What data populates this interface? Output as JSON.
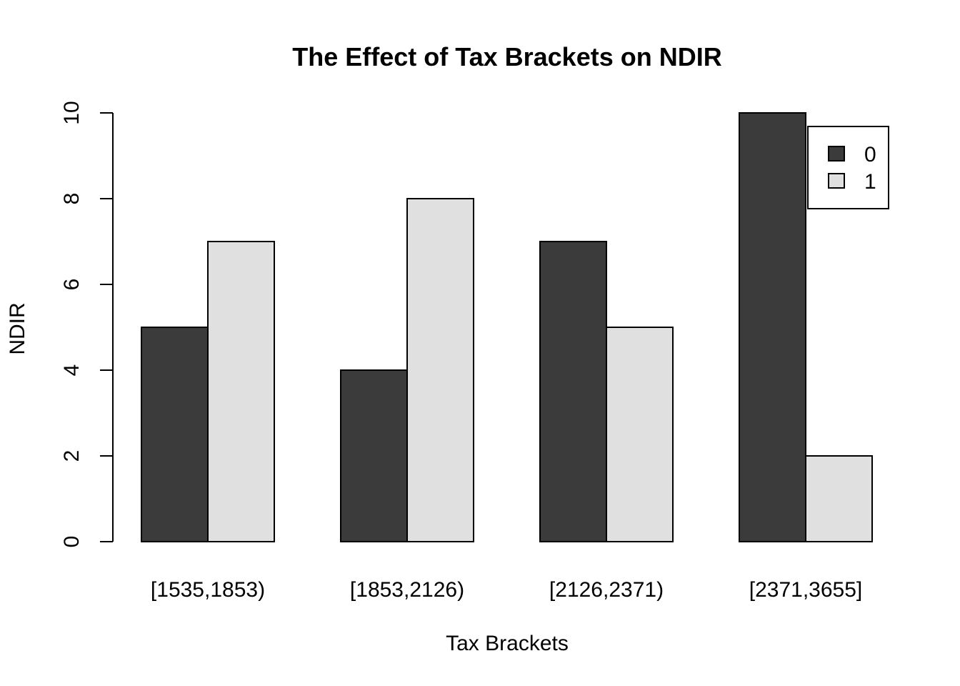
{
  "chart_data": {
    "type": "bar",
    "title": "The Effect of Tax Brackets on NDIR",
    "xlabel": "Tax Brackets",
    "ylabel": "NDIR",
    "categories": [
      "[1535,1853)",
      "[1853,2126)",
      "[2126,2371)",
      "[2371,3655]"
    ],
    "series": [
      {
        "name": "0",
        "color": "#3b3b3b",
        "values": [
          5,
          4,
          7,
          10
        ]
      },
      {
        "name": "1",
        "color": "#e0e0e0",
        "values": [
          7,
          8,
          5,
          2
        ]
      }
    ],
    "yticks": [
      0,
      2,
      4,
      6,
      8,
      10
    ],
    "ylim": [
      0,
      10
    ],
    "grid": false,
    "legend_position": "top-right",
    "bar_mode": "grouped"
  }
}
